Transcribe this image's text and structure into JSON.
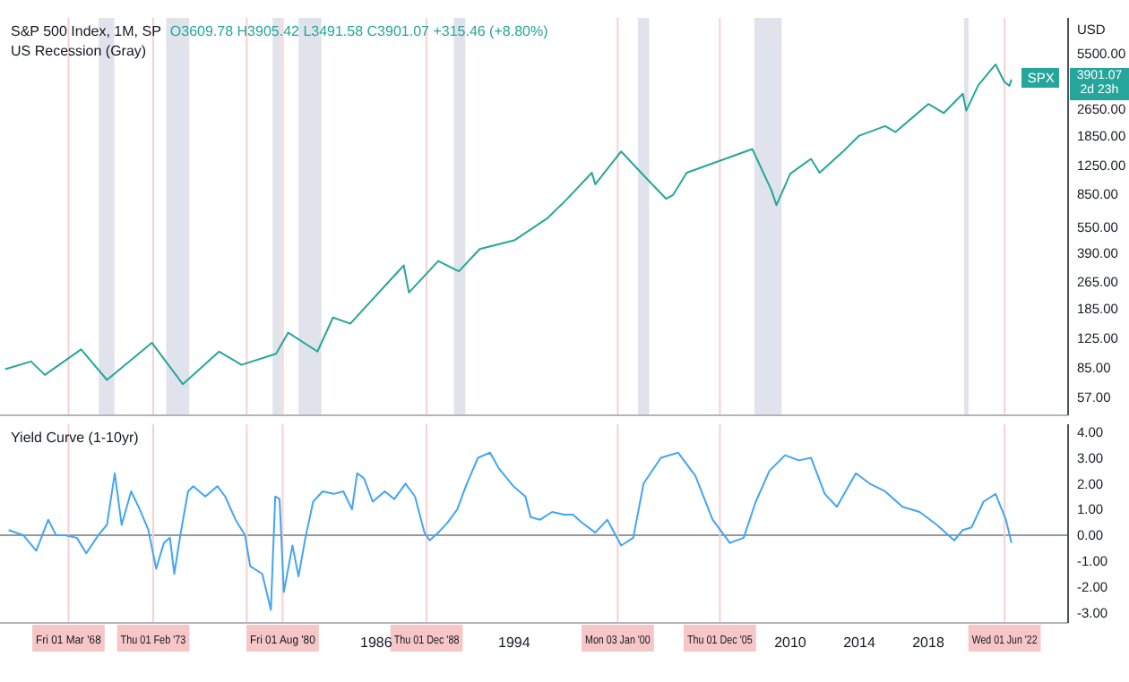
{
  "chart_data": [
    {
      "type": "line",
      "title": "S&P 500 Index, 1M, SP",
      "subtitle": "O3609.78 H3905.42 L3491.58 C3901.07 +315.46 (+8.80%)",
      "ylabel": "USD",
      "color": "#26a69a",
      "log": true,
      "tick_labels": "y",
      "x": [
        1964.5,
        1966.0,
        1966.8,
        1968.9,
        1970.4,
        1973.0,
        1974.8,
        1976.9,
        1978.2,
        1980.2,
        1980.9,
        1982.6,
        1983.5,
        1984.5,
        1987.6,
        1987.9,
        1989.6,
        1990.8,
        1992.0,
        1994.0,
        1995.9,
        1997.0,
        1998.5,
        1998.7,
        2000.2,
        2001.7,
        2002.8,
        2003.2,
        2004.0,
        2007.8,
        2008.9,
        2009.2,
        2010.0,
        2011.2,
        2011.7,
        2013.0,
        2014.0,
        2015.5,
        2016.1,
        2018.0,
        2018.9,
        2020.0,
        2020.2,
        2020.9,
        2021.9,
        2022.4,
        2022.7,
        2022.82
      ],
      "values": [
        83,
        92,
        77,
        108,
        72,
        118,
        68,
        105,
        88,
        102,
        135,
        105,
        165,
        152,
        330,
        230,
        350,
        305,
        410,
        460,
        615,
        785,
        1130,
        970,
        1500,
        1040,
        800,
        840,
        1130,
        1550,
        900,
        735,
        1115,
        1360,
        1130,
        1480,
        1850,
        2100,
        1940,
        2820,
        2500,
        3230,
        2580,
        3620,
        4770,
        3790,
        3590,
        3901.07
      ],
      "xlim": [
        1964.2,
        2026.1
      ],
      "ylim": [
        45,
        8850
      ],
      "yticks": [
        {
          "value": 57,
          "label": "57.00"
        },
        {
          "value": 85,
          "label": "85.00"
        },
        {
          "value": 125,
          "label": "125.00"
        },
        {
          "value": 185,
          "label": "185.00"
        },
        {
          "value": 265,
          "label": "265.00"
        },
        {
          "value": 390,
          "label": "390.00"
        },
        {
          "value": 550,
          "label": "550.00"
        },
        {
          "value": 850,
          "label": "850.00"
        },
        {
          "value": 1250,
          "label": "1250.00"
        },
        {
          "value": 1850,
          "label": "1850.00"
        },
        {
          "value": 2650,
          "label": "2650.00"
        },
        {
          "value": 5500,
          "label": "5500.00"
        }
      ],
      "bands": [
        {
          "axis": "x",
          "from": 1969.92,
          "to": 1970.83,
          "color": "#e0e3eb"
        },
        {
          "axis": "x",
          "from": 1973.83,
          "to": 1975.17,
          "color": "#e0e3eb"
        },
        {
          "axis": "x",
          "from": 1980.0,
          "to": 1980.5,
          "color": "#e0e3eb"
        },
        {
          "axis": "x",
          "from": 1981.5,
          "to": 1982.83,
          "color": "#e0e3eb"
        },
        {
          "axis": "x",
          "from": 1990.5,
          "to": 1991.17,
          "color": "#e0e3eb"
        },
        {
          "axis": "x",
          "from": 2001.17,
          "to": 2001.83,
          "color": "#e0e3eb"
        },
        {
          "axis": "x",
          "from": 2007.92,
          "to": 2009.5,
          "color": "#e0e3eb"
        },
        {
          "axis": "x",
          "from": 2020.08,
          "to": 2020.33,
          "color": "#e0e3eb"
        }
      ],
      "ref_lines": [
        {
          "axis": "x",
          "value": 1968.17,
          "color": "#f8d0d0"
        },
        {
          "axis": "x",
          "value": 1973.08,
          "color": "#f8d0d0"
        },
        {
          "axis": "x",
          "value": 1978.5,
          "color": "#f8d0d0"
        },
        {
          "axis": "x",
          "value": 1980.58,
          "color": "#f8d0d0"
        },
        {
          "axis": "x",
          "value": 1988.92,
          "color": "#f8d0d0"
        },
        {
          "axis": "x",
          "value": 2000.0,
          "color": "#f8d0d0"
        },
        {
          "axis": "x",
          "value": 2005.92,
          "color": "#f8d0d0"
        },
        {
          "axis": "x",
          "value": 2022.42,
          "color": "#f8d0d0"
        }
      ],
      "annotations": [
        "US Recession (Gray)",
        {
          "text": "SPX",
          "x": 2022.82,
          "y": 3901.07
        },
        "3901.07",
        "2d 23h"
      ]
    },
    {
      "type": "line",
      "title": "Yield Curve (1-10yr)",
      "color": "#42a5f5",
      "x": [
        1964.7,
        1965.55,
        1966.3,
        1967.0,
        1967.45,
        1967.95,
        1968.65,
        1969.2,
        1969.9,
        1970.4,
        1970.85,
        1971.25,
        1971.8,
        1972.3,
        1972.8,
        1973.25,
        1973.7,
        1974.05,
        1974.3,
        1974.65,
        1975.1,
        1975.4,
        1976.1,
        1976.8,
        1977.25,
        1977.85,
        1978.4,
        1978.7,
        1979.4,
        1979.9,
        1980.15,
        1980.4,
        1980.65,
        1981.15,
        1981.5,
        1981.9,
        1982.35,
        1982.9,
        1983.55,
        1984.1,
        1984.6,
        1984.9,
        1985.3,
        1985.8,
        1986.5,
        1987.05,
        1987.7,
        1988.25,
        1988.8,
        1989.1,
        1989.6,
        1990.15,
        1990.7,
        1991.2,
        1991.9,
        1992.6,
        1993.1,
        1993.95,
        1994.65,
        1994.95,
        1995.5,
        1996.2,
        1996.9,
        1997.4,
        1997.9,
        1998.7,
        1999.4,
        2000.2,
        2000.9,
        2001.5,
        2002.5,
        2003.5,
        2004.5,
        2005.5,
        2006.5,
        2007.3,
        2008.0,
        2008.8,
        2009.7,
        2010.5,
        2011.2,
        2012.0,
        2012.7,
        2013.8,
        2014.6,
        2015.5,
        2016.5,
        2017.5,
        2018.5,
        2019.5,
        2020.0,
        2020.5,
        2021.2,
        2021.9,
        2022.2,
        2022.5,
        2022.82
      ],
      "values": [
        0.2,
        0.0,
        -0.6,
        0.6,
        0.0,
        0.0,
        -0.1,
        -0.7,
        0.0,
        0.4,
        2.4,
        0.4,
        1.7,
        1.0,
        0.2,
        -1.3,
        -0.3,
        -0.1,
        -1.5,
        0.0,
        1.7,
        1.9,
        1.5,
        1.9,
        1.5,
        0.6,
        0.0,
        -1.2,
        -1.5,
        -2.9,
        1.5,
        1.4,
        -2.2,
        -0.4,
        -1.6,
        -0.1,
        1.3,
        1.7,
        1.6,
        1.7,
        1.0,
        2.4,
        2.2,
        1.3,
        1.7,
        1.4,
        2.0,
        1.5,
        0.1,
        -0.2,
        0.1,
        0.5,
        1.0,
        1.9,
        3.0,
        3.2,
        2.6,
        1.9,
        1.5,
        0.7,
        0.6,
        0.9,
        0.8,
        0.8,
        0.5,
        0.1,
        0.6,
        -0.4,
        -0.1,
        2.0,
        3.0,
        3.2,
        2.3,
        0.6,
        -0.3,
        -0.1,
        1.3,
        2.5,
        3.1,
        2.9,
        3.0,
        1.6,
        1.1,
        2.4,
        2.0,
        1.7,
        1.1,
        0.9,
        0.4,
        -0.2,
        0.2,
        0.3,
        1.3,
        1.6,
        1.1,
        0.6,
        -0.3
      ],
      "xlim": [
        1964.2,
        2026.1
      ],
      "ylim": [
        -3.4,
        4.3
      ],
      "xticks": [
        1986,
        1994,
        2010,
        2014,
        2018
      ],
      "yticks": [
        {
          "value": -3,
          "label": "-3.00"
        },
        {
          "value": -2,
          "label": "-2.00"
        },
        {
          "value": -1,
          "label": "-1.00"
        },
        {
          "value": 0,
          "label": "0.00"
        },
        {
          "value": 1,
          "label": "1.00"
        },
        {
          "value": 2,
          "label": "2.00"
        },
        {
          "value": 3,
          "label": "3.00"
        },
        {
          "value": 4,
          "label": "4.00"
        }
      ],
      "ref_lines": [
        {
          "axis": "y",
          "value": 0,
          "color": "#9598a1"
        },
        {
          "axis": "x",
          "value": 1968.17,
          "label": "Fri 01 Mar '68",
          "color": "#f8d0d0"
        },
        {
          "axis": "x",
          "value": 1973.08,
          "label": "Thu 01 Feb '73",
          "color": "#f8d0d0"
        },
        {
          "axis": "x",
          "value": 1978.5,
          "color": "#f8d0d0"
        },
        {
          "axis": "x",
          "value": 1980.58,
          "label": "Fri 01 Aug '80",
          "color": "#f8d0d0"
        },
        {
          "axis": "x",
          "value": 1988.92,
          "label": "Thu 01 Dec '88",
          "color": "#f8d0d0"
        },
        {
          "axis": "x",
          "value": 2000.0,
          "label": "Mon 03 Jan '00",
          "color": "#f8d0d0"
        },
        {
          "axis": "x",
          "value": 2005.92,
          "label": "Thu 01 Dec '05",
          "color": "#f8d0d0"
        },
        {
          "axis": "x",
          "value": 2022.42,
          "label": "Wed 01 Jun '22",
          "color": "#f8d0d0"
        }
      ]
    }
  ]
}
